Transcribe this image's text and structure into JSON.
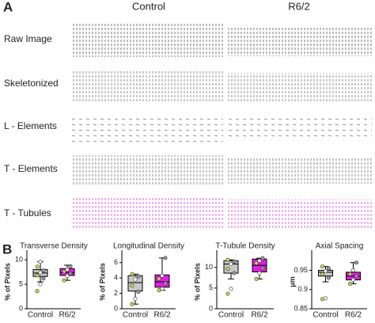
{
  "panel_a": {
    "letter": "A",
    "columns": [
      "Control",
      "R6/2"
    ],
    "rows": [
      "Raw Image",
      "Skeletonized",
      "L - Elements",
      "T - Elements",
      "T - Tubules"
    ]
  },
  "panel_b": {
    "letter": "B"
  },
  "chart_data": [
    {
      "type": "box",
      "title": "Transverse Density",
      "y_label": "% of Pixels",
      "categories": [
        "Control",
        "R6/2"
      ],
      "boxes": [
        {
          "min": 5.5,
          "q1": 6.6,
          "median": 7.3,
          "q3": 8.0,
          "max": 9.6,
          "color": "#c8c8c8"
        },
        {
          "min": 5.8,
          "q1": 6.8,
          "median": 7.4,
          "q3": 8.2,
          "max": 8.9,
          "color": "#e020e0"
        }
      ],
      "points": [
        [
          3.6,
          5.0,
          6.2,
          6.8,
          7.4,
          7.8,
          8.6,
          9.6
        ],
        [
          5.8,
          6.7,
          7.2,
          7.6,
          8.0,
          8.7
        ]
      ],
      "ylim": [
        0,
        11
      ],
      "yticks": [
        0,
        5,
        10
      ]
    },
    {
      "type": "box",
      "title": "Longitudinal Density",
      "y_label": "% of Pixels",
      "categories": [
        "Control",
        "R6/2"
      ],
      "boxes": [
        {
          "min": 0.6,
          "q1": 2.3,
          "median": 3.4,
          "q3": 4.3,
          "max": 4.5,
          "color": "#c8c8c8"
        },
        {
          "min": 2.4,
          "q1": 2.8,
          "median": 3.5,
          "q3": 4.4,
          "max": 6.6,
          "color": "#e020e0"
        }
      ],
      "points": [
        [
          0.6,
          1.3,
          2.2,
          3.0,
          3.8,
          4.2,
          4.5
        ],
        [
          2.4,
          2.6,
          3.3,
          3.9,
          4.3,
          6.6
        ]
      ],
      "ylim": [
        0,
        7
      ],
      "yticks": [
        0,
        2,
        4,
        6
      ]
    },
    {
      "type": "box",
      "title": "T-Tubule Density",
      "y_label": "% of Pixels",
      "categories": [
        "Control",
        "R6/2"
      ],
      "boxes": [
        {
          "min": 7.2,
          "q1": 8.6,
          "median": 10.8,
          "q3": 11.6,
          "max": 11.8,
          "color": "#c8c8c8"
        },
        {
          "min": 7.2,
          "q1": 8.9,
          "median": 10.5,
          "q3": 12.0,
          "max": 12.2,
          "color": "#e020e0"
        }
      ],
      "points": [
        [
          3.6,
          4.8,
          8.6,
          9.6,
          10.8,
          11.4,
          11.8
        ],
        [
          7.2,
          8.6,
          9.8,
          11.0,
          11.6,
          12.2
        ]
      ],
      "ylim": [
        0,
        13
      ],
      "yticks": [
        0,
        5,
        10
      ]
    },
    {
      "type": "box",
      "title": "Axial Spacing",
      "y_label": "μm",
      "categories": [
        "Control",
        "R6/2"
      ],
      "boxes": [
        {
          "min": 0.92,
          "q1": 0.935,
          "median": 0.945,
          "q3": 0.95,
          "max": 0.96,
          "color": "#c8c8c8"
        },
        {
          "min": 0.915,
          "q1": 0.925,
          "median": 0.935,
          "q3": 0.945,
          "max": 0.97,
          "color": "#e020e0"
        }
      ],
      "points": [
        [
          0.875,
          0.877,
          0.93,
          0.94,
          0.948,
          0.955,
          0.96
        ],
        [
          0.915,
          0.925,
          0.935,
          0.94,
          0.95,
          0.97
        ]
      ],
      "ylim": [
        0.85,
        0.99
      ],
      "yticks": [
        0.85,
        0.9,
        0.95
      ]
    }
  ]
}
